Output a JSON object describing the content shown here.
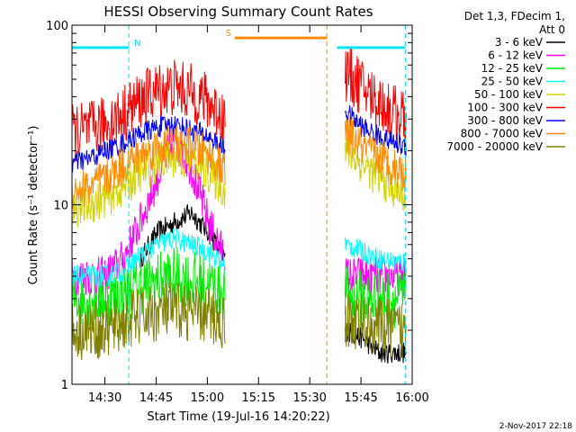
{
  "chart_data": {
    "type": "line",
    "title": "HESSI Observing Summary Count Rates",
    "xlabel": "Start Time (19-Jul-16 14:20:22)",
    "ylabel": "Count Rate (s⁻¹ detector⁻¹)",
    "y_scale": "log",
    "ylim": [
      1,
      100
    ],
    "xlim": [
      "14:20:22",
      "16:00:00"
    ],
    "x_ticks": [
      "14:30",
      "14:45",
      "15:00",
      "15:15",
      "15:30",
      "15:45",
      "16:00"
    ],
    "y_ticks": [
      "1",
      "10",
      "100"
    ],
    "legend_title_lines": [
      "Det 1,3, FDecim 1,",
      "Att 0"
    ],
    "legend_position": "right",
    "x_unit": "minutes after 14:20:22",
    "data_gap": [
      "15:08",
      "15:38"
    ],
    "annotations": [
      {
        "text": "N",
        "color": "#00e5ee",
        "range": [
          "14:20:22",
          "14:37:00"
        ],
        "y": 75
      },
      {
        "text": "S",
        "color": "#ff8c00",
        "range": [
          "15:08:00",
          "15:35:00"
        ],
        "y": 85
      },
      {
        "text": "",
        "color": "#00e5ee",
        "range": [
          "15:38:00",
          "15:58:00"
        ],
        "y": 75
      }
    ],
    "x": [
      0,
      5,
      10,
      15,
      20,
      25,
      30,
      35,
      40,
      45,
      48,
      78,
      80,
      85,
      90,
      95,
      98
    ],
    "series": [
      {
        "name": "3 - 6 keV",
        "color": "#000000",
        "values": [
          null,
          null,
          null,
          null,
          5,
          7,
          8,
          9,
          7,
          5,
          null,
          null,
          2,
          1.8,
          1.5,
          1.5,
          1.5
        ]
      },
      {
        "name": "6 - 12 keV",
        "color": "#ff00ff",
        "values": [
          4,
          4,
          4,
          5,
          8,
          14,
          24,
          16,
          8,
          5,
          null,
          null,
          4,
          4,
          4,
          4,
          4
        ]
      },
      {
        "name": "12 - 25 keV",
        "color": "#00ee00",
        "values": [
          3,
          3,
          3,
          3.2,
          3.5,
          3.8,
          4,
          3.8,
          3.6,
          3.3,
          null,
          null,
          3.2,
          3,
          3,
          3,
          3
        ]
      },
      {
        "name": "25 - 50 keV",
        "color": "#00ffff",
        "values": [
          4,
          4,
          4,
          4.3,
          5.2,
          6,
          6.5,
          6,
          5.5,
          4.5,
          null,
          null,
          6,
          5.5,
          5,
          4.8,
          4.8
        ]
      },
      {
        "name": "50 - 100 keV",
        "color": "#d4d400",
        "values": [
          9.5,
          10,
          11,
          12.5,
          15,
          17,
          18.5,
          17,
          15,
          12,
          null,
          null,
          20,
          17,
          14,
          12,
          11
        ]
      },
      {
        "name": "100 - 300 keV",
        "color": "#ff0000",
        "values": [
          25,
          26,
          28,
          32,
          38,
          43,
          45,
          42,
          37,
          30,
          null,
          null,
          55,
          45,
          37,
          32,
          29
        ]
      },
      {
        "name": "300 - 800 keV",
        "color": "#0000ff",
        "values": [
          17,
          18,
          20,
          22,
          25,
          27,
          28,
          26,
          24,
          20,
          null,
          null,
          33,
          27,
          24,
          22,
          21
        ]
      },
      {
        "name": "800 - 7000 keV",
        "color": "#ff8c00",
        "values": [
          12,
          12.5,
          14,
          16.5,
          19,
          21,
          22,
          21,
          19,
          15,
          null,
          null,
          25,
          21,
          18,
          16,
          15
        ]
      },
      {
        "name": "7000 - 20000 keV",
        "color": "#808000",
        "values": [
          2,
          2,
          2,
          2.2,
          2.4,
          2.5,
          2.6,
          2.5,
          2.4,
          2.2,
          null,
          null,
          2.3,
          2.2,
          2.1,
          2,
          2
        ]
      }
    ]
  },
  "footer": {
    "date": "2-Nov-2017 22:18"
  }
}
